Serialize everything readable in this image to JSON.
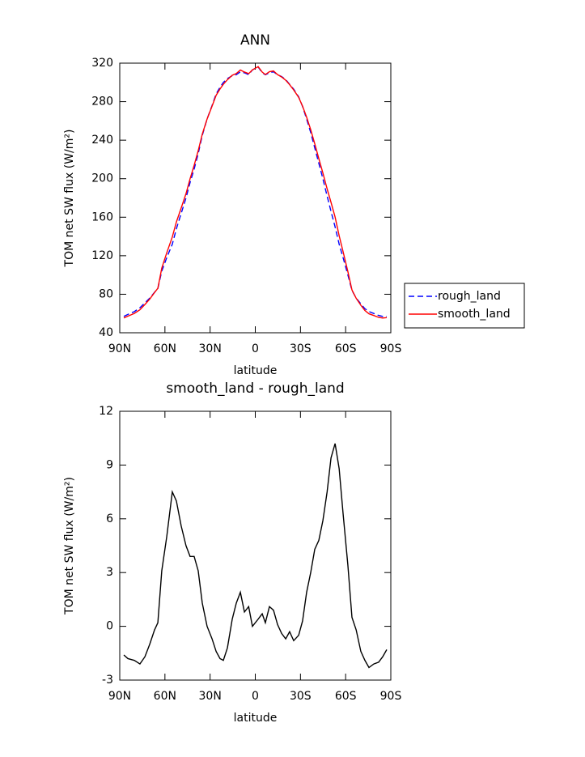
{
  "chart_data": [
    {
      "type": "line",
      "title": "ANN",
      "xlabel": "latitude",
      "ylabel": "TOM net SW flux (W/m²)",
      "x": [
        87.3,
        84.6,
        80.3,
        76.6,
        73.3,
        70.1,
        66.9,
        64.7,
        62.1,
        58.8,
        55.1,
        52.4,
        49.2,
        46.0,
        43.3,
        40.6,
        37.9,
        35.2,
        32.0,
        28.7,
        26.0,
        23.4,
        21.2,
        18.5,
        15.3,
        12.6,
        9.9,
        7.2,
        4.4,
        1.9,
        -1.9,
        -4.6,
        -6.7,
        -9.4,
        -12.1,
        -14.8,
        -17.5,
        -20.2,
        -22.8,
        -25.5,
        -28.8,
        -31.4,
        -34.1,
        -36.8,
        -39.5,
        -42.2,
        -44.9,
        -47.7,
        -50.3,
        -53.0,
        -55.7,
        -58.3,
        -61.5,
        -64.2,
        -67.0,
        -70.1,
        -72.8,
        -75.5,
        -78.7,
        -81.9,
        -84.6,
        -87.3
      ],
      "series": [
        {
          "name": "rough_land",
          "color": "#0000ff",
          "linestyle": "dashed",
          "values": [
            57,
            59,
            62,
            66,
            71,
            76,
            82,
            86,
            104,
            118,
            132,
            148,
            164,
            180,
            196,
            210,
            226,
            245,
            262,
            276,
            288,
            295,
            300,
            304,
            307,
            308,
            311,
            310,
            308,
            313,
            316,
            310,
            308,
            310,
            311,
            308,
            306,
            303,
            298,
            293,
            285,
            275,
            262,
            248,
            232,
            216,
            200,
            182,
            166,
            150,
            132,
            118,
            100,
            84,
            76,
            70,
            65,
            62,
            60,
            58,
            57,
            57
          ]
        },
        {
          "name": "smooth_land",
          "color": "#ff0000",
          "linestyle": "solid",
          "values": [
            55.4,
            57.2,
            60.1,
            63.9,
            69.3,
            75.0,
            81.8,
            86.2,
            107.1,
            123.0,
            139.5,
            155.0,
            169.6,
            184.5,
            199.9,
            213.9,
            229.1,
            246.3,
            262.0,
            275.3,
            286.6,
            293.2,
            298.1,
            302.8,
            307.4,
            309.3,
            312.9,
            310.8,
            309.1,
            313.0,
            316.4,
            310.7,
            308.2,
            311.1,
            311.9,
            308.1,
            305.6,
            302.3,
            297.7,
            292.2,
            284.5,
            275.3,
            263.9,
            251.0,
            236.3,
            220.8,
            205.9,
            189.5,
            175.4,
            160.2,
            140.8,
            124.3,
            103.4,
            84.5,
            75.8,
            68.6,
            63.1,
            59.7,
            57.9,
            56.0,
            55.3,
            55.7
          ]
        }
      ],
      "xlim": [
        90,
        -90
      ],
      "xticks": [
        {
          "value": 90,
          "label": "90N"
        },
        {
          "value": 60,
          "label": "60N"
        },
        {
          "value": 30,
          "label": "30N"
        },
        0,
        {
          "value": -30,
          "label": "30S"
        },
        {
          "value": -60,
          "label": "60S"
        },
        {
          "value": -90,
          "label": "90S"
        }
      ],
      "ylim": [
        40,
        320
      ],
      "yticks": [
        40,
        80,
        120,
        160,
        200,
        240,
        280,
        320
      ],
      "legend": "right"
    },
    {
      "type": "line",
      "title": "smooth_land - rough_land",
      "xlabel": "latitude",
      "ylabel": "TOM net SW flux (W/m²)",
      "x": [
        87.3,
        84.6,
        80.3,
        76.6,
        73.3,
        70.1,
        66.9,
        64.7,
        62.1,
        58.8,
        55.1,
        52.4,
        49.2,
        46.0,
        43.3,
        40.6,
        37.9,
        35.2,
        32.0,
        28.7,
        26.0,
        23.4,
        21.2,
        18.5,
        15.3,
        12.6,
        9.9,
        7.2,
        4.4,
        1.9,
        -1.9,
        -4.6,
        -6.7,
        -9.4,
        -12.1,
        -14.8,
        -17.5,
        -20.2,
        -22.8,
        -25.5,
        -28.8,
        -31.4,
        -34.1,
        -36.8,
        -39.5,
        -42.2,
        -44.9,
        -47.7,
        -50.3,
        -53.0,
        -55.7,
        -58.3,
        -61.5,
        -64.2,
        -67.0,
        -70.1,
        -72.8,
        -75.5,
        -78.7,
        -81.9,
        -84.6,
        -87.3
      ],
      "values": [
        -1.6,
        -1.8,
        -1.9,
        -2.1,
        -1.7,
        -1.0,
        -0.2,
        0.2,
        3.1,
        5.0,
        7.5,
        7.0,
        5.6,
        4.5,
        3.9,
        3.9,
        3.1,
        1.3,
        0.0,
        -0.7,
        -1.4,
        -1.8,
        -1.9,
        -1.2,
        0.4,
        1.3,
        1.9,
        0.8,
        1.1,
        0.0,
        0.4,
        0.7,
        0.2,
        1.1,
        0.9,
        0.1,
        -0.4,
        -0.7,
        -0.3,
        -0.8,
        -0.5,
        0.3,
        1.9,
        3.0,
        4.3,
        4.8,
        5.9,
        7.5,
        9.4,
        10.2,
        8.8,
        6.3,
        3.4,
        0.5,
        -0.2,
        -1.4,
        -1.9,
        -2.3,
        -2.1,
        -2.0,
        -1.7,
        -1.3
      ],
      "color": "#000000",
      "xlim": [
        90,
        -90
      ],
      "xticks": [
        {
          "value": 90,
          "label": "90N"
        },
        {
          "value": 60,
          "label": "60N"
        },
        {
          "value": 30,
          "label": "30N"
        },
        0,
        {
          "value": -30,
          "label": "30S"
        },
        {
          "value": -60,
          "label": "60S"
        },
        {
          "value": -90,
          "label": "90S"
        }
      ],
      "ylim": [
        -3,
        12
      ],
      "yticks": [
        -3,
        0,
        3,
        6,
        9,
        12
      ]
    }
  ]
}
